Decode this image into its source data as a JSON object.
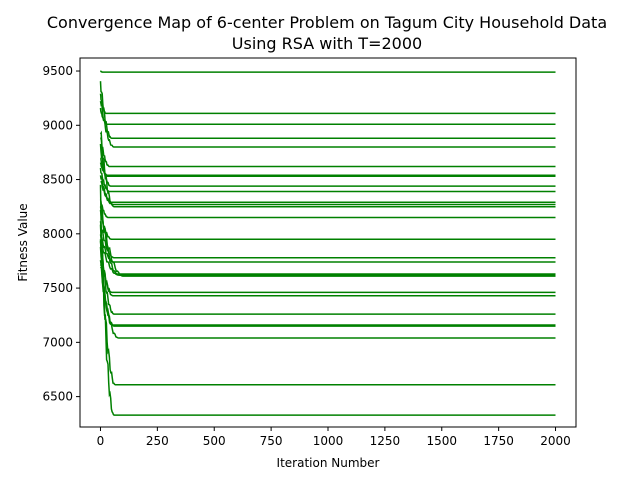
{
  "chart_data": {
    "type": "line",
    "title_lines": [
      "Convergence Map of 6-center Problem on Tagum City Household Data",
      "Using RSA with T=2000"
    ],
    "xlabel": "Iteration Number",
    "ylabel": "Fitness Value",
    "xlim": [
      -90,
      2090
    ],
    "ylim": [
      6220,
      9620
    ],
    "xticks": [
      0,
      250,
      500,
      750,
      1000,
      1250,
      1500,
      1750,
      2000
    ],
    "yticks": [
      6500,
      7000,
      7500,
      8000,
      8500,
      9000,
      9500
    ],
    "grid": false,
    "line_color": "#008000",
    "series": [
      {
        "start": 9500,
        "final": 9490,
        "converge_at": 10
      },
      {
        "start": 9280,
        "final": 9110,
        "converge_at": 25
      },
      {
        "start": 9150,
        "final": 9010,
        "converge_at": 30
      },
      {
        "start": 9400,
        "final": 8880,
        "converge_at": 50
      },
      {
        "start": 9250,
        "final": 8800,
        "converge_at": 60
      },
      {
        "start": 8900,
        "final": 8620,
        "converge_at": 40
      },
      {
        "start": 8700,
        "final": 8540,
        "converge_at": 30
      },
      {
        "start": 8650,
        "final": 8530,
        "converge_at": 35
      },
      {
        "start": 8800,
        "final": 8440,
        "converge_at": 45
      },
      {
        "start": 8600,
        "final": 8390,
        "converge_at": 40
      },
      {
        "start": 8550,
        "final": 8290,
        "converge_at": 50
      },
      {
        "start": 8500,
        "final": 8270,
        "converge_at": 55
      },
      {
        "start": 8950,
        "final": 8250,
        "converge_at": 60
      },
      {
        "start": 8310,
        "final": 8150,
        "converge_at": 35
      },
      {
        "start": 8200,
        "final": 7950,
        "converge_at": 50
      },
      {
        "start": 8100,
        "final": 7780,
        "converge_at": 60
      },
      {
        "start": 8000,
        "final": 7740,
        "converge_at": 60
      },
      {
        "start": 8300,
        "final": 7630,
        "converge_at": 75
      },
      {
        "start": 7950,
        "final": 7620,
        "converge_at": 80
      },
      {
        "start": 8250,
        "final": 7610,
        "converge_at": 100
      },
      {
        "start": 7900,
        "final": 7460,
        "converge_at": 50
      },
      {
        "start": 7850,
        "final": 7430,
        "converge_at": 55
      },
      {
        "start": 7950,
        "final": 7260,
        "converge_at": 60
      },
      {
        "start": 7800,
        "final": 7160,
        "converge_at": 55
      },
      {
        "start": 7750,
        "final": 7150,
        "converge_at": 60
      },
      {
        "start": 7700,
        "final": 7040,
        "converge_at": 80
      },
      {
        "start": 8000,
        "final": 6610,
        "converge_at": 65
      },
      {
        "start": 8300,
        "final": 6330,
        "converge_at": 60
      }
    ],
    "x_end": 2000
  }
}
